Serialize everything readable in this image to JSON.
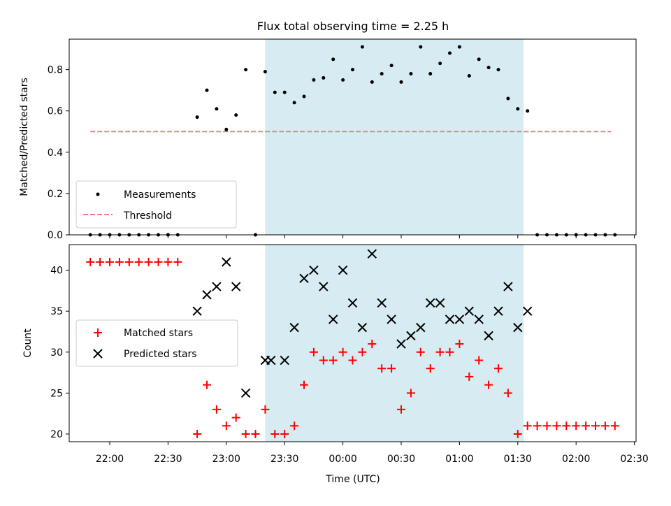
{
  "chart_data": [
    {
      "type": "scatter",
      "title": "Flux total observing time = 2.25 h",
      "ylabel": "Matched/Predicted stars",
      "ylim": [
        0,
        0.95
      ],
      "yticks": [
        "0.0",
        "0.2",
        "0.4",
        "0.6",
        "0.8"
      ],
      "shaded_span": [
        "23:20",
        "01:33"
      ],
      "legend": {
        "placement": "lower-left",
        "entries": [
          "Measurements",
          "Threshold"
        ]
      },
      "threshold": {
        "name": "Threshold",
        "value": 0.5,
        "x_range": [
          "21:50",
          "02:18"
        ],
        "color": "#f08080"
      },
      "series": [
        {
          "name": "Measurements",
          "color": "#000000",
          "points": [
            [
              "21:50",
              0.0
            ],
            [
              "21:55",
              0.0
            ],
            [
              "22:00",
              0.0
            ],
            [
              "22:05",
              0.0
            ],
            [
              "22:10",
              0.0
            ],
            [
              "22:15",
              0.0
            ],
            [
              "22:20",
              0.0
            ],
            [
              "22:25",
              0.0
            ],
            [
              "22:30",
              0.0
            ],
            [
              "22:35",
              0.0
            ],
            [
              "22:45",
              0.57
            ],
            [
              "22:50",
              0.7
            ],
            [
              "22:55",
              0.61
            ],
            [
              "23:00",
              0.51
            ],
            [
              "23:05",
              0.58
            ],
            [
              "23:10",
              0.8
            ],
            [
              "23:15",
              0.0
            ],
            [
              "23:20",
              0.79
            ],
            [
              "23:25",
              0.69
            ],
            [
              "23:30",
              0.69
            ],
            [
              "23:35",
              0.64
            ],
            [
              "23:40",
              0.67
            ],
            [
              "23:45",
              0.75
            ],
            [
              "23:50",
              0.76
            ],
            [
              "23:55",
              0.85
            ],
            [
              "00:00",
              0.75
            ],
            [
              "00:05",
              0.8
            ],
            [
              "00:10",
              0.91
            ],
            [
              "00:15",
              0.74
            ],
            [
              "00:20",
              0.78
            ],
            [
              "00:25",
              0.82
            ],
            [
              "00:30",
              0.74
            ],
            [
              "00:35",
              0.78
            ],
            [
              "00:40",
              0.91
            ],
            [
              "00:45",
              0.78
            ],
            [
              "00:50",
              0.83
            ],
            [
              "00:55",
              0.88
            ],
            [
              "01:00",
              0.91
            ],
            [
              "01:05",
              0.77
            ],
            [
              "01:10",
              0.85
            ],
            [
              "01:15",
              0.81
            ],
            [
              "01:20",
              0.8
            ],
            [
              "01:25",
              0.66
            ],
            [
              "01:30",
              0.61
            ],
            [
              "01:35",
              0.6
            ],
            [
              "01:40",
              0.0
            ],
            [
              "01:45",
              0.0
            ],
            [
              "01:50",
              0.0
            ],
            [
              "01:55",
              0.0
            ],
            [
              "02:00",
              0.0
            ],
            [
              "02:05",
              0.0
            ],
            [
              "02:10",
              0.0
            ],
            [
              "02:15",
              0.0
            ],
            [
              "02:20",
              0.0
            ]
          ]
        }
      ]
    },
    {
      "type": "scatter",
      "xlabel": "Time (UTC)",
      "ylabel": "Count",
      "ylim": [
        19,
        43
      ],
      "yticks": [
        "20",
        "25",
        "30",
        "35",
        "40"
      ],
      "xlim": [
        "21:40",
        "02:30"
      ],
      "xticks": [
        "22:00",
        "22:30",
        "23:00",
        "23:30",
        "00:00",
        "00:30",
        "01:00",
        "01:30",
        "02:00",
        "02:30"
      ],
      "shaded_span": [
        "23:20",
        "01:33"
      ],
      "legend": {
        "placement": "center-left",
        "entries": [
          "Matched stars",
          "Predicted stars"
        ]
      },
      "series": [
        {
          "name": "Matched stars",
          "marker": "plus",
          "color": "#ff0000",
          "points": [
            [
              "21:50",
              41
            ],
            [
              "21:55",
              41
            ],
            [
              "22:00",
              41
            ],
            [
              "22:05",
              41
            ],
            [
              "22:10",
              41
            ],
            [
              "22:15",
              41
            ],
            [
              "22:20",
              41
            ],
            [
              "22:25",
              41
            ],
            [
              "22:30",
              41
            ],
            [
              "22:35",
              41
            ],
            [
              "22:45",
              20
            ],
            [
              "22:50",
              26
            ],
            [
              "22:55",
              23
            ],
            [
              "23:00",
              21
            ],
            [
              "23:05",
              22
            ],
            [
              "23:10",
              20
            ],
            [
              "23:15",
              20
            ],
            [
              "23:20",
              23
            ],
            [
              "23:25",
              20
            ],
            [
              "23:30",
              20
            ],
            [
              "23:35",
              21
            ],
            [
              "23:40",
              26
            ],
            [
              "23:45",
              30
            ],
            [
              "23:50",
              29
            ],
            [
              "23:55",
              29
            ],
            [
              "00:00",
              30
            ],
            [
              "00:05",
              29
            ],
            [
              "00:10",
              30
            ],
            [
              "00:15",
              31
            ],
            [
              "00:20",
              28
            ],
            [
              "00:25",
              28
            ],
            [
              "00:30",
              23
            ],
            [
              "00:35",
              25
            ],
            [
              "00:40",
              30
            ],
            [
              "00:45",
              28
            ],
            [
              "00:50",
              30
            ],
            [
              "00:55",
              30
            ],
            [
              "01:00",
              31
            ],
            [
              "01:05",
              27
            ],
            [
              "01:10",
              29
            ],
            [
              "01:15",
              26
            ],
            [
              "01:20",
              28
            ],
            [
              "01:25",
              25
            ],
            [
              "01:30",
              20
            ],
            [
              "01:35",
              21
            ],
            [
              "01:40",
              21
            ],
            [
              "01:45",
              21
            ],
            [
              "01:50",
              21
            ],
            [
              "01:55",
              21
            ],
            [
              "02:00",
              21
            ],
            [
              "02:05",
              21
            ],
            [
              "02:10",
              21
            ],
            [
              "02:15",
              21
            ],
            [
              "02:20",
              21
            ]
          ]
        },
        {
          "name": "Predicted stars",
          "marker": "x",
          "color": "#000000",
          "points": [
            [
              "22:45",
              35
            ],
            [
              "22:50",
              37
            ],
            [
              "22:55",
              38
            ],
            [
              "23:00",
              41
            ],
            [
              "23:05",
              38
            ],
            [
              "23:10",
              25
            ],
            [
              "23:20",
              29
            ],
            [
              "23:23",
              29
            ],
            [
              "23:30",
              29
            ],
            [
              "23:35",
              33
            ],
            [
              "23:40",
              39
            ],
            [
              "23:45",
              40
            ],
            [
              "23:50",
              38
            ],
            [
              "23:55",
              34
            ],
            [
              "00:00",
              40
            ],
            [
              "00:05",
              36
            ],
            [
              "00:10",
              33
            ],
            [
              "00:15",
              42
            ],
            [
              "00:20",
              36
            ],
            [
              "00:25",
              34
            ],
            [
              "00:30",
              31
            ],
            [
              "00:35",
              32
            ],
            [
              "00:40",
              33
            ],
            [
              "00:45",
              36
            ],
            [
              "00:50",
              36
            ],
            [
              "00:55",
              34
            ],
            [
              "01:00",
              34
            ],
            [
              "01:05",
              35
            ],
            [
              "01:10",
              34
            ],
            [
              "01:15",
              32
            ],
            [
              "01:20",
              35
            ],
            [
              "01:25",
              38
            ],
            [
              "01:30",
              33
            ],
            [
              "01:35",
              35
            ]
          ]
        }
      ]
    }
  ]
}
